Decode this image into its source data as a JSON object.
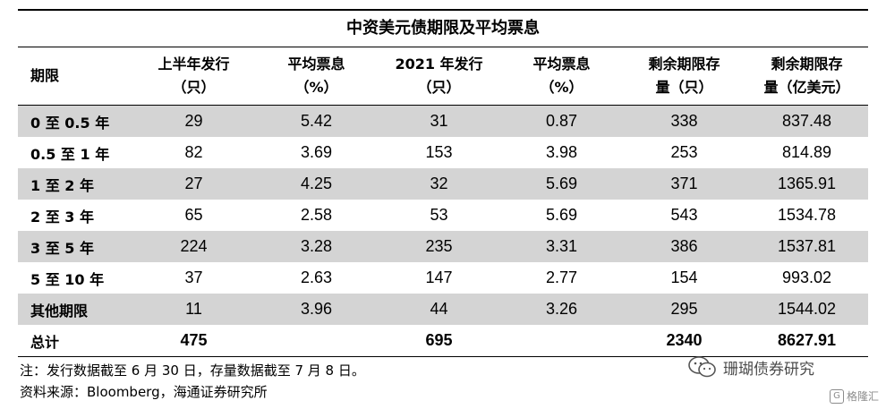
{
  "title": "中资美元债期限及平均票息",
  "headers": [
    [
      "期限",
      ""
    ],
    [
      "上半年发行",
      "（只）"
    ],
    [
      "平均票息",
      "（%）"
    ],
    [
      "2021 年发行",
      "（只）"
    ],
    [
      "平均票息",
      "（%）"
    ],
    [
      "剩余期限存",
      "量（只）"
    ],
    [
      "剩余期限存",
      "量（亿美元）"
    ]
  ],
  "rows": [
    [
      "0 至 0.5 年",
      "29",
      "5.42",
      "31",
      "0.87",
      "338",
      "837.48"
    ],
    [
      "0.5 至 1 年",
      "82",
      "3.69",
      "153",
      "3.98",
      "253",
      "814.89"
    ],
    [
      "1 至 2 年",
      "27",
      "4.25",
      "32",
      "5.69",
      "371",
      "1365.91"
    ],
    [
      "2 至 3 年",
      "65",
      "2.58",
      "53",
      "5.69",
      "543",
      "1534.78"
    ],
    [
      "3 至 5 年",
      "224",
      "3.28",
      "235",
      "3.31",
      "386",
      "1537.81"
    ],
    [
      "5 至 10 年",
      "37",
      "2.63",
      "147",
      "2.77",
      "154",
      "993.02"
    ],
    [
      "其他期限",
      "11",
      "3.96",
      "44",
      "3.26",
      "295",
      "1544.02"
    ],
    [
      "总计",
      "475",
      "",
      "695",
      "",
      "2340",
      "8627.91"
    ]
  ],
  "notes": {
    "note": "注：发行数据截至 6 月 30 日，存量数据截至 7 月 8 日。",
    "source": "资料来源：Bloomberg，海通证券研究所"
  },
  "watermark": {
    "label": "珊瑚债券研究",
    "icon": "wechat-icon",
    "corner_label": "格隆汇",
    "corner_icon_text": "G"
  }
}
